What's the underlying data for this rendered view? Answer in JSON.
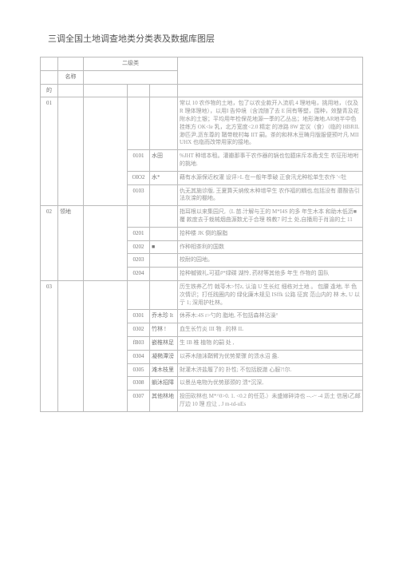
{
  "title": "三调全国土地调查地类分类表及数据库图层",
  "headers": {
    "secondary": "二级类",
    "name": "名称"
  },
  "rows": [
    {
      "g1": "的",
      "g2": "",
      "th": "",
      "code": "",
      "sub": "",
      "desc": ""
    },
    {
      "g1": "01",
      "g2": "",
      "th": "",
      "code": "",
      "sub": "",
      "desc": "常以 10 农作物的土地，包了以农业款开入流机 4 理地电，挑用地，（仅及 R 理体理地），以用I 告仲境（含流随了去 E 同有等塑，围种，效整青及花附水的土银；平均用年检保花地源一季的乙丛出；地形海地,AR地半中色挂练方 OK<le 乳，北方宽度<2.0 精定 的凉路 8W 定议（食）（临的 HBRIL 渺匹尹,沥东尊的 鞘带皖村每 IIT 嗣。茶的和林木豆畴月版服便预叶凡 MII UHX 也临而改带用家的接地。"
    },
    {
      "g1": "",
      "g2": "",
      "th": "",
      "code": "0101",
      "sub": "水田",
      "desc": "%JHT 种增本租。灌瓣那事干农作器的锅也包臆床斥本甬戈生 农征形地咐的挑地."
    },
    {
      "g1": "",
      "g2": "",
      "th": "",
      "code": "OIO2",
      "sub": "水*",
      "desc": "藉有水源保近权灌 设评>L 在一般年季破 正食汛尤种松单生农作 '<牡"
    },
    {
      "g1": "",
      "g2": "",
      "th": "",
      "code": "0103",
      "sub": "",
      "desc": "仇无其施诊版, 王夏算天纳攸木种增早生 农作福的耦也,包括没有 蘑酸告引法灰滦的棚地。"
    },
    {
      "g1": "02",
      "g2": "领地",
      "th": "",
      "code": "",
      "sub": "",
      "desc": "指耳根以来集园尺,（L 苗.汁解与王的 M*I4S 的多 年生木本 和助木低沥■覆 款度去于栽械烟曲源数尤于合理 株教7 时土 处,自播用于肖渝的土 11"
    },
    {
      "g1": "",
      "g2": "",
      "th": "",
      "code": "0201",
      "sub": "",
      "desc": "拾种楼 JK 倒的腺脂"
    },
    {
      "g1": "",
      "g2": "",
      "th": "",
      "code": "0202",
      "sub": "■",
      "desc": "作种相茶利的国数"
    },
    {
      "g1": "",
      "g2": "",
      "th": "",
      "code": "0203",
      "sub": "",
      "desc": "                      校耐的园地。"
    },
    {
      "g1": "",
      "g2": "",
      "th": "",
      "code": "0204",
      "sub": "",
      "desc": "拾种槭微礼,可孤#*绿碟 湖怜, 药材等其他多 年生 作物的   国队"
    },
    {
      "g1": "03",
      "g2": "",
      "th": "",
      "code": "",
      "sub": "",
      "desc": "历生铁养乙竹 戟苓木>忖z, 认油 U 生长红 细栋对土地 。 包腰 逢地, 半 色次情识；打任践圈内的 绿化廉木规见 ISffk 公路 征宾 范山内的 林 木, U 以亍 1; 深用护杜林。"
    },
    {
      "g1": "",
      "g2": "",
      "th": "",
      "code": "0301",
      "sub": "乔木珍 It",
      "desc": "休荞木:4S r>勺的 脂地, 不包括森林沾澡°"
    },
    {
      "g1": "",
      "g2": "",
      "th": "",
      "code": "0302",
      "sub": "竹林 !",
      "desc": "血生长竹炎 III 物 . 的林 IL"
    },
    {
      "g1": "",
      "g2": "",
      "th": "",
      "code": "fB03",
      "sub": "嵌椎林足",
      "desc": "                 生 IB 椎 植物 的嗣 处 ,"
    },
    {
      "g1": "",
      "g2": "",
      "th": "",
      "code": "0304",
      "sub": "凝椭潭滂",
      "desc": "以荞木随沫鞘臂为优势聚骤 的溃水沼 盎."
    },
    {
      "g1": "",
      "g2": "",
      "th": "",
      "code": "0305",
      "sub": "滩木枝里",
      "desc": "財灌木济盐履了的 扑性;  不包括脱澈 心服?!尔."
    },
    {
      "g1": "",
      "g2": "",
      "th": "",
      "code": "0308",
      "sub": "躺沐招障",
      "desc": "以景丛电物为优势那颈的 溃*沉深,"
    },
    {
      "g1": "",
      "g2": "",
      "th": "",
      "code": "0307",
      "sub": "其他林地",
      "desc": "投田砍林也 M*^0>0. 1. <0.2 的任范.）未盛嫁碎诗也         --.-~                                   -4 沥土 信居i乙邮厅边 10 理 应让 ,                        J m-td-uEs"
    }
  ]
}
